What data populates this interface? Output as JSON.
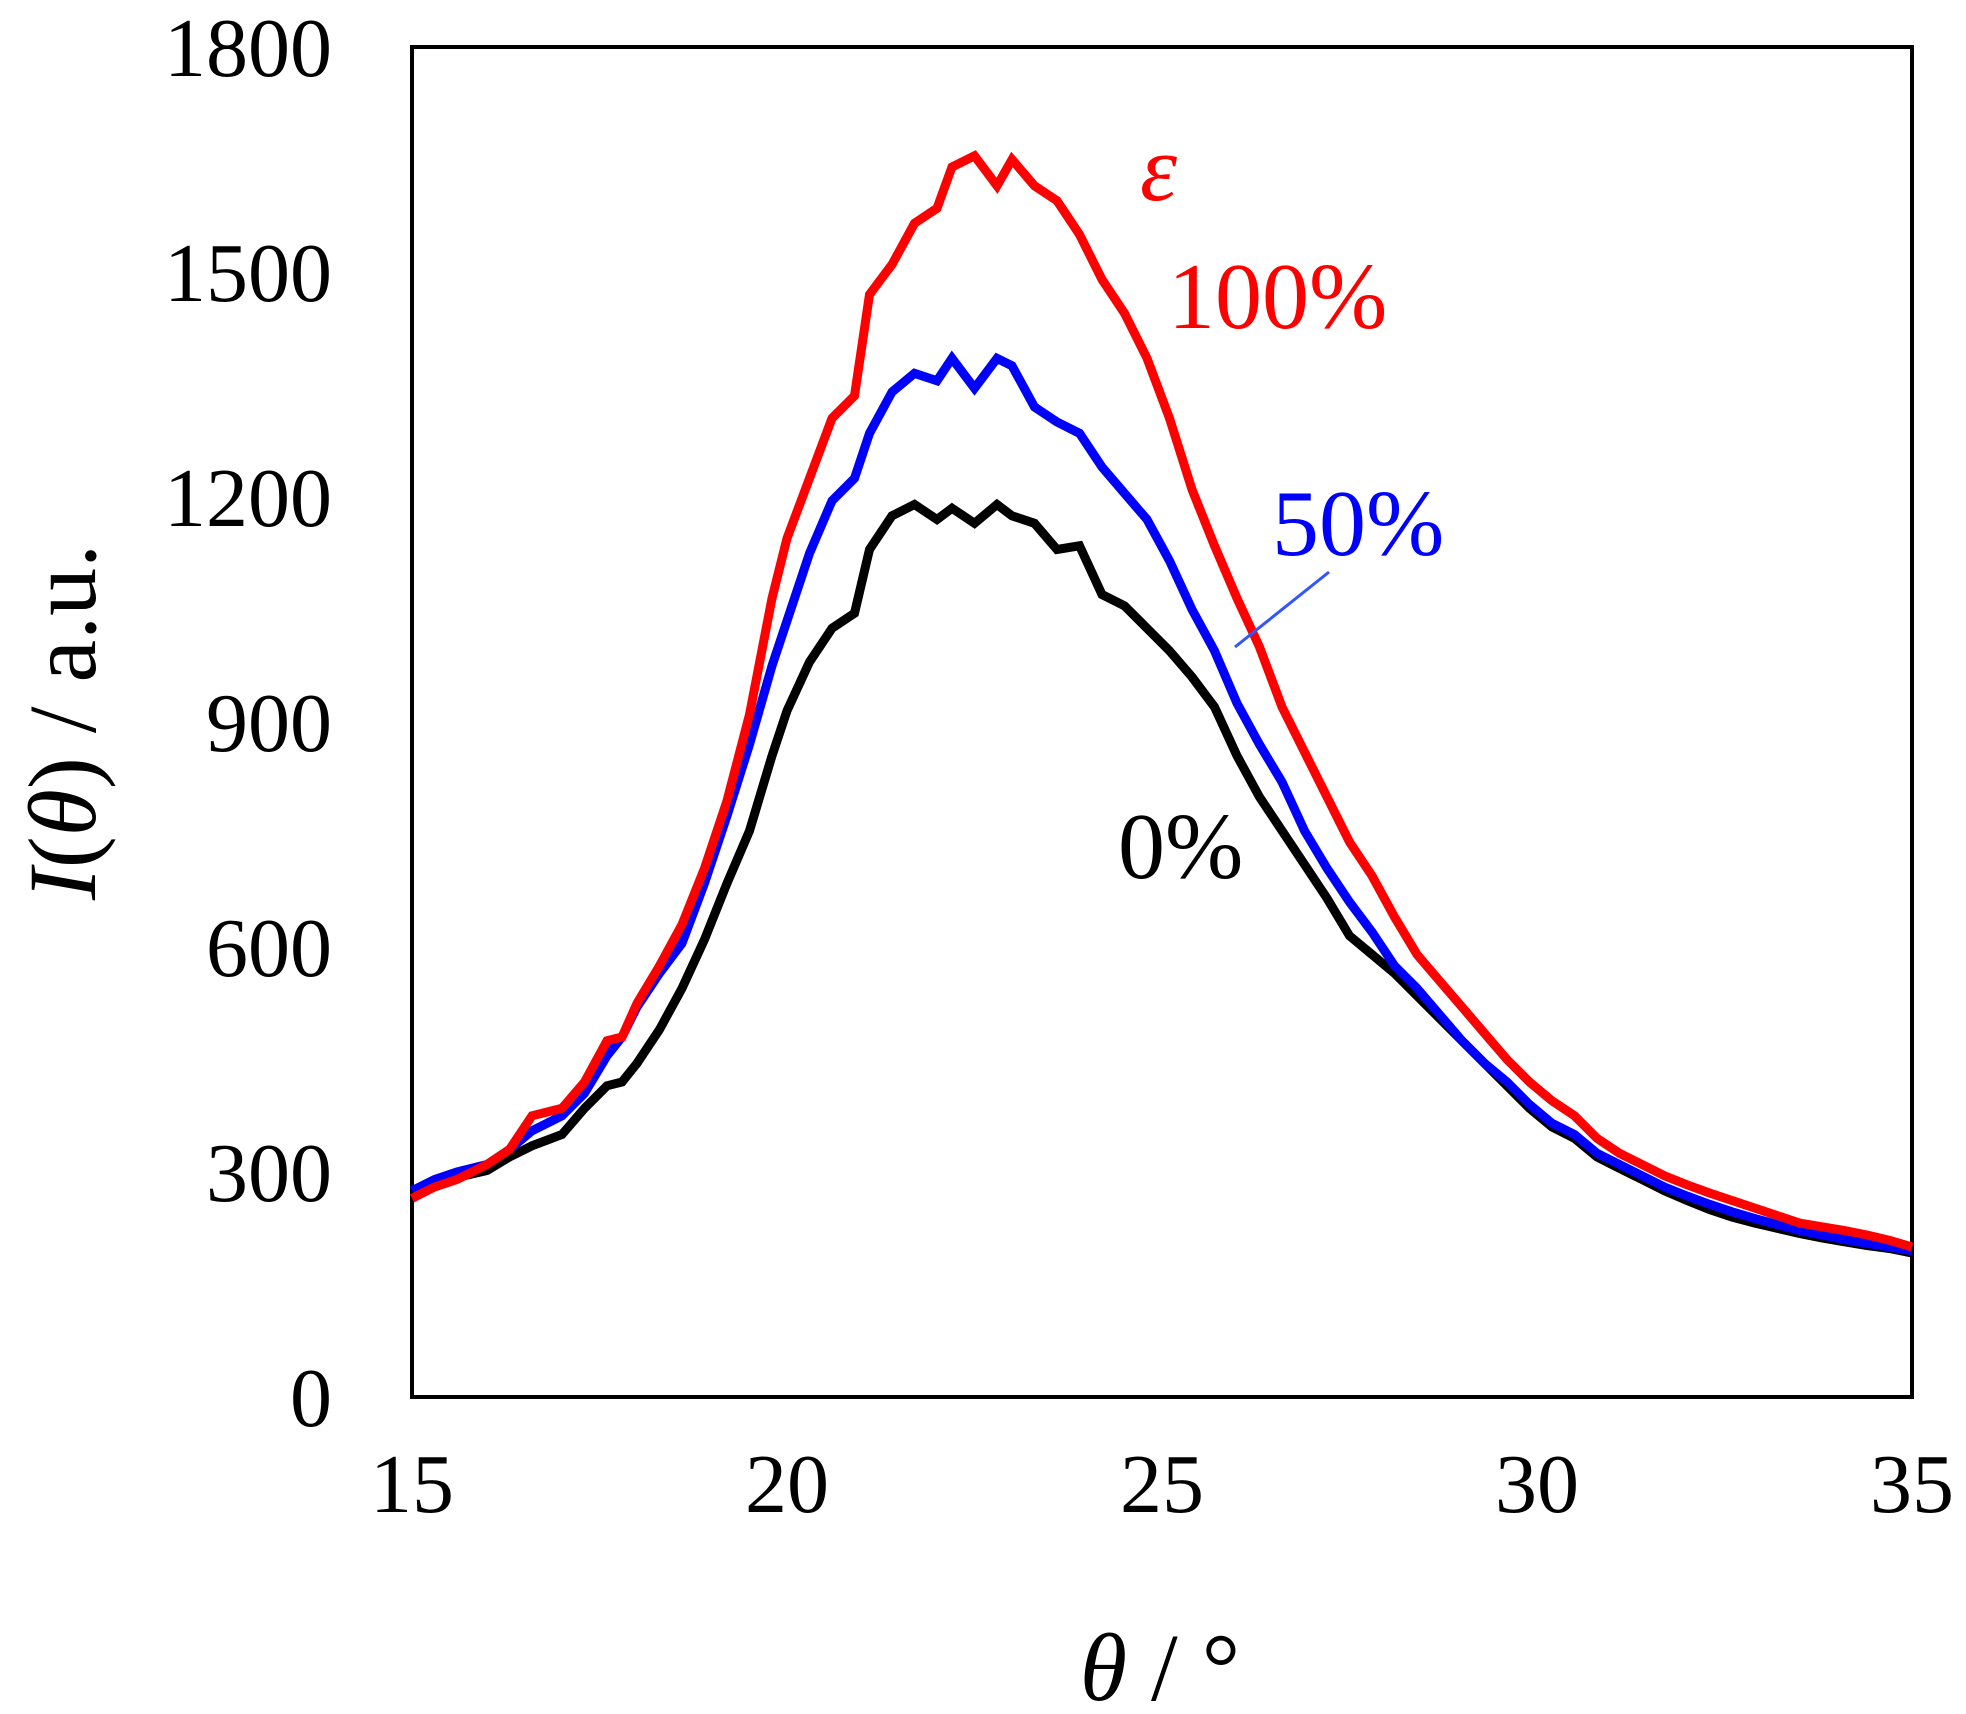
{
  "chart_data": {
    "type": "line",
    "title": "",
    "xlabel": {
      "symbol": "θ",
      "unit": " / °"
    },
    "ylabel": {
      "symbol": "I",
      "arg": "θ",
      "unit": " / a.u."
    },
    "xlim": [
      15,
      35
    ],
    "ylim": [
      0,
      1800
    ],
    "xticks": [
      15,
      20,
      25,
      30,
      35
    ],
    "yticks": [
      0,
      300,
      600,
      900,
      1200,
      1500,
      1800
    ],
    "grid": false,
    "legend_title": "ε",
    "legend_title_color": "#ff0000",
    "series": [
      {
        "name": "0%",
        "color": "#000000",
        "x": [
          15.0,
          15.3,
          15.6,
          16.0,
          16.3,
          16.6,
          17.0,
          17.3,
          17.6,
          17.8,
          18.0,
          18.3,
          18.6,
          18.9,
          19.2,
          19.5,
          19.8,
          20.0,
          20.3,
          20.6,
          20.9,
          21.1,
          21.4,
          21.7,
          22.0,
          22.2,
          22.5,
          22.8,
          23.0,
          23.3,
          23.6,
          23.9,
          24.2,
          24.5,
          24.8,
          25.1,
          25.4,
          25.7,
          26.0,
          26.3,
          26.6,
          26.9,
          27.2,
          27.5,
          27.8,
          28.1,
          28.4,
          28.7,
          29.0,
          29.3,
          29.6,
          29.9,
          30.2,
          30.5,
          30.8,
          31.1,
          31.4,
          31.7,
          32.0,
          32.3,
          32.6,
          32.9,
          33.2,
          33.5,
          33.8,
          34.1,
          34.4,
          34.7,
          35.0
        ],
        "values": [
          275,
          285,
          293,
          302,
          320,
          335,
          350,
          385,
          415,
          420,
          445,
          490,
          545,
          610,
          685,
          755,
          855,
          915,
          980,
          1025,
          1045,
          1130,
          1175,
          1190,
          1170,
          1185,
          1165,
          1190,
          1175,
          1165,
          1130,
          1135,
          1070,
          1055,
          1025,
          995,
          960,
          920,
          855,
          800,
          755,
          710,
          665,
          615,
          590,
          565,
          535,
          505,
          475,
          445,
          415,
          385,
          360,
          345,
          320,
          305,
          290,
          275,
          262,
          250,
          240,
          232,
          225,
          218,
          212,
          207,
          202,
          198,
          192
        ]
      },
      {
        "name": "50%",
        "color": "#0000ff",
        "x": [
          15.0,
          15.3,
          15.6,
          16.0,
          16.3,
          16.6,
          17.0,
          17.3,
          17.6,
          17.8,
          18.0,
          18.3,
          18.6,
          18.9,
          19.2,
          19.5,
          19.8,
          20.0,
          20.3,
          20.6,
          20.9,
          21.1,
          21.4,
          21.7,
          22.0,
          22.2,
          22.5,
          22.8,
          23.0,
          23.3,
          23.6,
          23.9,
          24.2,
          24.5,
          24.8,
          25.1,
          25.4,
          25.7,
          26.0,
          26.3,
          26.6,
          26.9,
          27.2,
          27.5,
          27.8,
          28.1,
          28.4,
          28.7,
          29.0,
          29.3,
          29.6,
          29.9,
          30.2,
          30.5,
          30.8,
          31.1,
          31.4,
          31.7,
          32.0,
          32.3,
          32.6,
          32.9,
          33.2,
          33.5,
          33.8,
          34.1,
          34.4,
          34.7,
          35.0
        ],
        "values": [
          275,
          290,
          300,
          310,
          330,
          355,
          375,
          405,
          455,
          480,
          520,
          565,
          605,
          685,
          775,
          870,
          975,
          1035,
          1125,
          1195,
          1225,
          1285,
          1340,
          1365,
          1355,
          1385,
          1345,
          1385,
          1375,
          1320,
          1300,
          1285,
          1240,
          1205,
          1170,
          1115,
          1050,
          995,
          925,
          870,
          820,
          755,
          705,
          660,
          620,
          575,
          545,
          510,
          475,
          445,
          420,
          390,
          365,
          350,
          325,
          310,
          295,
          280,
          268,
          257,
          247,
          238,
          230,
          222,
          216,
          210,
          205,
          200,
          195
        ]
      },
      {
        "name": "100%",
        "color": "#ff0000",
        "x": [
          15.0,
          15.3,
          15.6,
          16.0,
          16.3,
          16.6,
          17.0,
          17.3,
          17.6,
          17.8,
          18.0,
          18.3,
          18.6,
          18.9,
          19.2,
          19.5,
          19.8,
          20.0,
          20.3,
          20.6,
          20.9,
          21.1,
          21.4,
          21.7,
          22.0,
          22.2,
          22.5,
          22.8,
          23.0,
          23.3,
          23.6,
          23.9,
          24.2,
          24.5,
          24.8,
          25.1,
          25.4,
          25.7,
          26.0,
          26.3,
          26.6,
          26.9,
          27.2,
          27.5,
          27.8,
          28.1,
          28.4,
          28.7,
          29.0,
          29.3,
          29.6,
          29.9,
          30.2,
          30.5,
          30.8,
          31.1,
          31.4,
          31.7,
          32.0,
          32.3,
          32.6,
          32.9,
          33.2,
          33.5,
          33.8,
          34.1,
          34.4,
          34.7,
          35.0
        ],
        "values": [
          265,
          280,
          290,
          310,
          330,
          375,
          385,
          420,
          475,
          480,
          525,
          575,
          630,
          705,
          795,
          910,
          1065,
          1145,
          1225,
          1305,
          1335,
          1470,
          1510,
          1565,
          1585,
          1640,
          1655,
          1615,
          1650,
          1615,
          1595,
          1550,
          1490,
          1445,
          1385,
          1305,
          1210,
          1135,
          1065,
          1000,
          920,
          860,
          800,
          740,
          695,
          640,
          590,
          555,
          520,
          485,
          450,
          420,
          395,
          375,
          345,
          325,
          310,
          295,
          283,
          272,
          262,
          252,
          242,
          232,
          227,
          222,
          216,
          209,
          200
        ]
      }
    ],
    "annotations": [
      {
        "text": "100%",
        "series": "100%",
        "color": "#ff0000"
      },
      {
        "text": "50%",
        "series": "50%",
        "color": "#0000ff"
      },
      {
        "text": "0%",
        "series": "0%",
        "color": "#000000"
      }
    ]
  }
}
